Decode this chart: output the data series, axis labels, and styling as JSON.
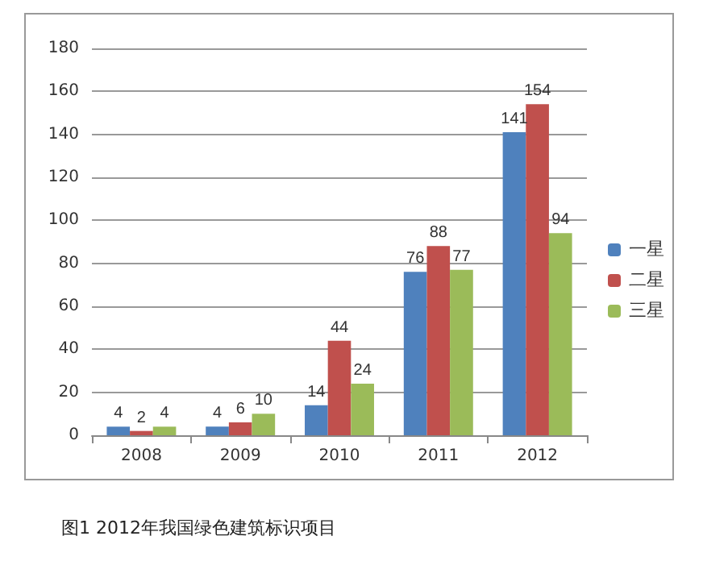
{
  "chart_data": {
    "type": "bar",
    "categories": [
      "2008",
      "2009",
      "2010",
      "2011",
      "2012"
    ],
    "series": [
      {
        "name": "一星",
        "color": "#4f81bd",
        "values": [
          4,
          4,
          14,
          76,
          141
        ]
      },
      {
        "name": "二星",
        "color": "#c0504d",
        "values": [
          2,
          6,
          44,
          88,
          154
        ]
      },
      {
        "name": "三星",
        "color": "#9bbb59",
        "values": [
          4,
          10,
          24,
          77,
          94
        ]
      }
    ],
    "ylim": [
      0,
      180
    ],
    "yticks": [
      0,
      20,
      40,
      60,
      80,
      100,
      120,
      140,
      160,
      180
    ],
    "grid": "y",
    "legend": "right",
    "data_labels": true,
    "annotations": [
      "图1 2012年我国绿色建筑标识项目"
    ]
  }
}
